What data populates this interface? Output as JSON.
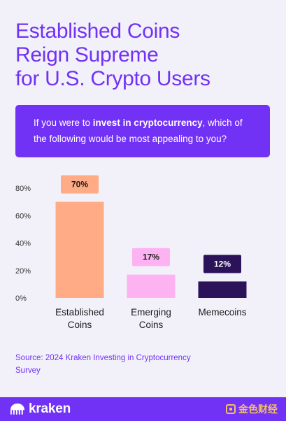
{
  "title_lines": [
    "Established Coins",
    "Reign Supreme",
    "for U.S. Crypto Users"
  ],
  "question": {
    "before": "If you were to ",
    "emphasis": "invest in cryptocurrency",
    "after": ", which of the following would be most appealing to you?"
  },
  "colors": {
    "accent": "#7132f5",
    "background": "#f2f1fa",
    "established": "#ffab85",
    "emerging": "#fdb2f2",
    "memecoins": "#2b1259"
  },
  "chart_data": {
    "type": "bar",
    "categories": [
      [
        "Established",
        "Coins"
      ],
      [
        "Emerging",
        "Coins"
      ],
      [
        "Memecoins"
      ]
    ],
    "values": [
      70,
      17,
      12
    ],
    "value_labels": [
      "70%",
      "17%",
      "12%"
    ],
    "bar_colors": [
      "#ffab85",
      "#fdb2f2",
      "#2b1259"
    ],
    "label_box_colors": [
      "#ffab85",
      "#fdb2f2",
      "#2b1259"
    ],
    "label_text_colors": [
      "#1a1a1a",
      "#1a1a1a",
      "#ffffff"
    ],
    "y_ticks": [
      "0%",
      "20%",
      "40%",
      "60%",
      "80%"
    ],
    "ylim": [
      0,
      80
    ],
    "grid": false
  },
  "source": "Source: 2024 Kraken Investing in Cryptocurrency Survey",
  "footer": {
    "brand": "kraken",
    "watermark": "金色财经"
  }
}
